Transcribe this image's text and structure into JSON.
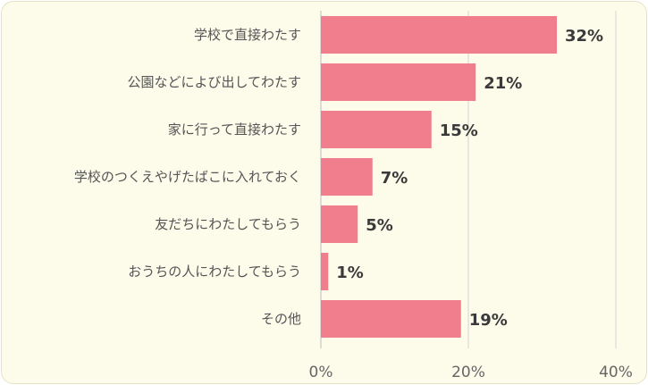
{
  "chart_data": {
    "type": "bar",
    "orientation": "horizontal",
    "categories": [
      "学校で直接わたす",
      "公園などによび出してわたす",
      "家に行って直接わたす",
      "学校のつくえやげたばこに入れておく",
      "友だちにわたしてもらう",
      "おうちの人にわたしてもらう",
      "その他"
    ],
    "values": [
      32,
      21,
      15,
      7,
      5,
      1,
      19
    ],
    "value_labels": [
      "32%",
      "21%",
      "15%",
      "7%",
      "5%",
      "1%",
      "19%"
    ],
    "xlim": [
      0,
      40
    ],
    "xticks": [
      0,
      20,
      40
    ],
    "xtick_labels": [
      "0%",
      "20%",
      "40%"
    ],
    "grid": true,
    "bar_color": "#f07e8c",
    "grid_color": "#d4d4d4",
    "panel_color": "#fdfbea"
  }
}
